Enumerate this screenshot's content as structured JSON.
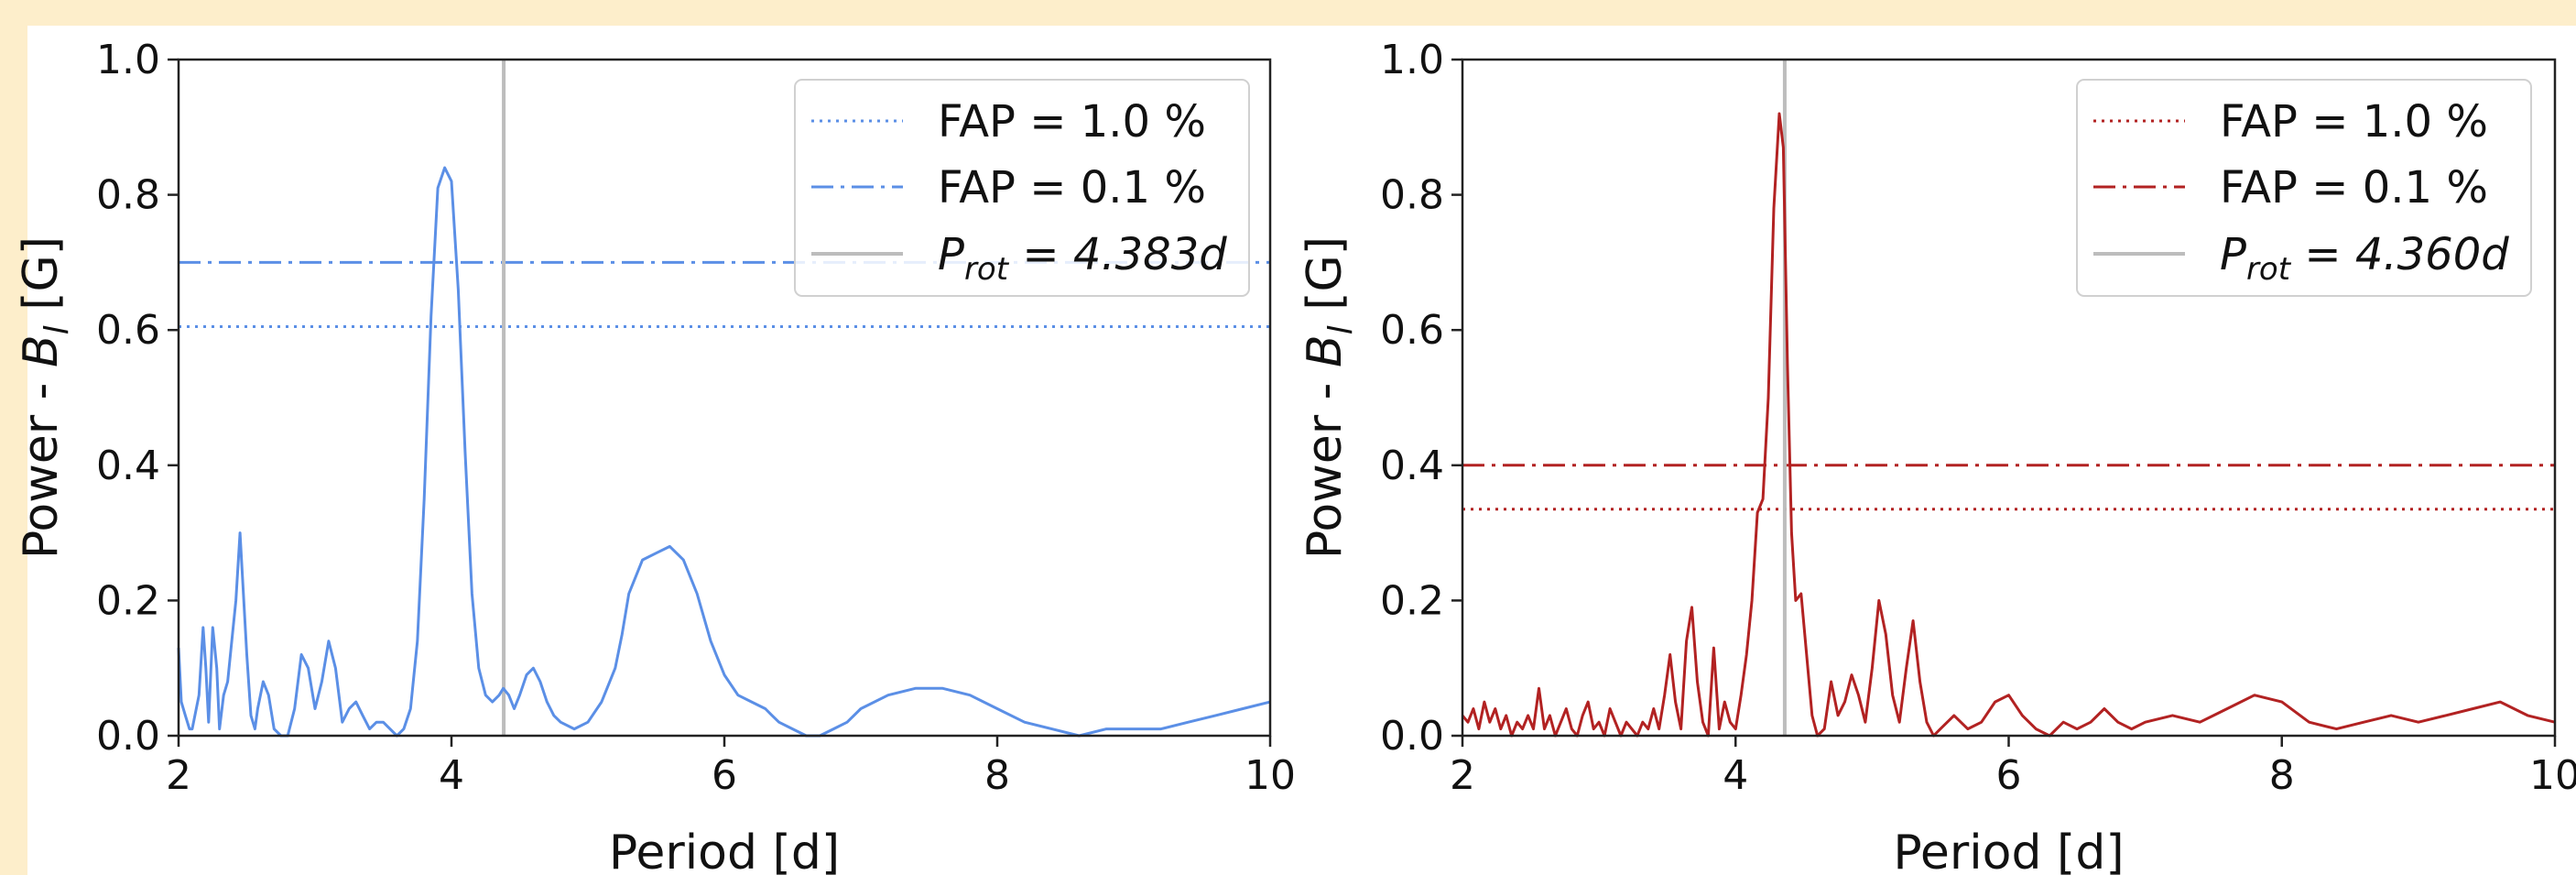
{
  "chart_data": [
    {
      "type": "line",
      "title": "",
      "xlabel": "Period [d]",
      "ylabel": "Power - B_l [G]",
      "ylabel_parts": {
        "pre": "Power - ",
        "sym": "B",
        "sub": "l",
        "post": " [G]"
      },
      "xlim": [
        2,
        10
      ],
      "ylim": [
        0,
        1.0
      ],
      "xticks": [
        "2",
        "4",
        "6",
        "8",
        "10"
      ],
      "yticks": [
        "0.0",
        "0.2",
        "0.4",
        "0.6",
        "0.8",
        "1.0"
      ],
      "color": "#5b8fe6",
      "legend_position": "top-right",
      "series": [
        {
          "x": [
            2.0,
            2.02,
            2.05,
            2.08,
            2.1,
            2.15,
            2.18,
            2.2,
            2.22,
            2.25,
            2.28,
            2.3,
            2.33,
            2.36,
            2.38,
            2.42,
            2.45,
            2.5,
            2.53,
            2.56,
            2.58,
            2.62,
            2.66,
            2.7,
            2.75,
            2.8,
            2.85,
            2.9,
            2.95,
            3.0,
            3.05,
            3.1,
            3.15,
            3.2,
            3.25,
            3.3,
            3.35,
            3.4,
            3.45,
            3.5,
            3.55,
            3.6,
            3.65,
            3.7,
            3.75,
            3.8,
            3.85,
            3.9,
            3.95,
            4.0,
            4.05,
            4.1,
            4.15,
            4.2,
            4.25,
            4.3,
            4.35,
            4.38,
            4.42,
            4.46,
            4.5,
            4.55,
            4.6,
            4.65,
            4.7,
            4.75,
            4.8,
            4.9,
            5.0,
            5.1,
            5.2,
            5.25,
            5.3,
            5.4,
            5.5,
            5.6,
            5.7,
            5.8,
            5.9,
            6.0,
            6.1,
            6.2,
            6.3,
            6.35,
            6.4,
            6.5,
            6.6,
            6.7,
            6.8,
            6.9,
            7.0,
            7.2,
            7.4,
            7.6,
            7.8,
            8.0,
            8.2,
            8.4,
            8.6,
            8.8,
            8.9,
            9.0,
            9.2,
            9.4,
            9.6,
            9.8,
            10.0
          ],
          "y": [
            0.13,
            0.05,
            0.03,
            0.01,
            0.01,
            0.06,
            0.16,
            0.1,
            0.02,
            0.16,
            0.1,
            0.01,
            0.06,
            0.08,
            0.12,
            0.2,
            0.3,
            0.12,
            0.03,
            0.01,
            0.04,
            0.08,
            0.06,
            0.01,
            0.0,
            0.0,
            0.04,
            0.12,
            0.1,
            0.04,
            0.08,
            0.14,
            0.1,
            0.02,
            0.04,
            0.05,
            0.03,
            0.01,
            0.02,
            0.02,
            0.01,
            0.0,
            0.01,
            0.04,
            0.14,
            0.35,
            0.62,
            0.81,
            0.84,
            0.82,
            0.66,
            0.42,
            0.21,
            0.1,
            0.06,
            0.05,
            0.06,
            0.07,
            0.06,
            0.04,
            0.06,
            0.09,
            0.1,
            0.08,
            0.05,
            0.03,
            0.02,
            0.01,
            0.02,
            0.05,
            0.1,
            0.15,
            0.21,
            0.26,
            0.27,
            0.28,
            0.26,
            0.21,
            0.14,
            0.09,
            0.06,
            0.05,
            0.04,
            0.03,
            0.02,
            0.01,
            0.0,
            0.0,
            0.01,
            0.02,
            0.04,
            0.06,
            0.07,
            0.07,
            0.06,
            0.04,
            0.02,
            0.01,
            0.0,
            0.01,
            0.01,
            0.01,
            0.01,
            0.02,
            0.03,
            0.04,
            0.05
          ]
        }
      ],
      "hlines": [
        {
          "label": "FAP = 1.0 %",
          "y": 0.605,
          "style": "dotted"
        },
        {
          "label": "FAP = 0.1 %",
          "y": 0.7,
          "style": "dashdot"
        }
      ],
      "vline": {
        "x": 4.383,
        "label_sym": "P",
        "label_sub": "rot",
        "label_text": " = 4.383d"
      }
    },
    {
      "type": "line",
      "title": "",
      "xlabel": "Period [d]",
      "ylabel": "Power - B_l [G]",
      "ylabel_parts": {
        "pre": "Power - ",
        "sym": "B",
        "sub": "l",
        "post": " [G]"
      },
      "xlim": [
        2,
        10
      ],
      "ylim": [
        0,
        1.0
      ],
      "xticks": [
        "2",
        "4",
        "6",
        "8",
        "10"
      ],
      "yticks": [
        "0.0",
        "0.2",
        "0.4",
        "0.6",
        "0.8",
        "1.0"
      ],
      "color": "#b22222",
      "legend_position": "top-right",
      "series": [
        {
          "x": [
            2.0,
            2.04,
            2.08,
            2.12,
            2.16,
            2.2,
            2.24,
            2.28,
            2.32,
            2.36,
            2.4,
            2.44,
            2.48,
            2.52,
            2.56,
            2.6,
            2.64,
            2.68,
            2.72,
            2.76,
            2.8,
            2.84,
            2.88,
            2.92,
            2.96,
            3.0,
            3.04,
            3.08,
            3.12,
            3.16,
            3.2,
            3.24,
            3.28,
            3.32,
            3.36,
            3.4,
            3.44,
            3.48,
            3.52,
            3.56,
            3.6,
            3.64,
            3.68,
            3.72,
            3.76,
            3.8,
            3.84,
            3.88,
            3.92,
            3.96,
            4.0,
            4.04,
            4.08,
            4.12,
            4.16,
            4.2,
            4.24,
            4.28,
            4.32,
            4.35,
            4.38,
            4.41,
            4.44,
            4.48,
            4.52,
            4.56,
            4.6,
            4.65,
            4.7,
            4.75,
            4.8,
            4.85,
            4.9,
            4.95,
            5.0,
            5.05,
            5.1,
            5.15,
            5.2,
            5.25,
            5.3,
            5.35,
            5.4,
            5.45,
            5.5,
            5.6,
            5.7,
            5.8,
            5.9,
            6.0,
            6.1,
            6.2,
            6.3,
            6.4,
            6.5,
            6.6,
            6.7,
            6.8,
            6.9,
            7.0,
            7.2,
            7.4,
            7.6,
            7.8,
            8.0,
            8.2,
            8.4,
            8.6,
            8.8,
            9.0,
            9.2,
            9.4,
            9.6,
            9.8,
            10.0
          ],
          "y": [
            0.03,
            0.02,
            0.04,
            0.01,
            0.05,
            0.02,
            0.04,
            0.01,
            0.03,
            0.0,
            0.02,
            0.01,
            0.03,
            0.01,
            0.07,
            0.01,
            0.03,
            0.0,
            0.02,
            0.04,
            0.01,
            0.0,
            0.03,
            0.05,
            0.01,
            0.02,
            0.0,
            0.04,
            0.02,
            0.0,
            0.02,
            0.01,
            0.0,
            0.02,
            0.01,
            0.04,
            0.01,
            0.06,
            0.12,
            0.05,
            0.01,
            0.14,
            0.19,
            0.08,
            0.02,
            0.0,
            0.13,
            0.01,
            0.05,
            0.02,
            0.01,
            0.06,
            0.12,
            0.2,
            0.33,
            0.35,
            0.5,
            0.78,
            0.92,
            0.87,
            0.55,
            0.3,
            0.2,
            0.21,
            0.12,
            0.03,
            0.0,
            0.01,
            0.08,
            0.03,
            0.05,
            0.09,
            0.06,
            0.02,
            0.1,
            0.2,
            0.15,
            0.06,
            0.02,
            0.1,
            0.17,
            0.08,
            0.02,
            0.0,
            0.01,
            0.03,
            0.01,
            0.02,
            0.05,
            0.06,
            0.03,
            0.01,
            0.0,
            0.02,
            0.01,
            0.02,
            0.04,
            0.02,
            0.01,
            0.02,
            0.03,
            0.02,
            0.04,
            0.06,
            0.05,
            0.02,
            0.01,
            0.02,
            0.03,
            0.02,
            0.03,
            0.04,
            0.05,
            0.03,
            0.02
          ]
        }
      ],
      "hlines": [
        {
          "label": "FAP = 1.0 %",
          "y": 0.335,
          "style": "dotted"
        },
        {
          "label": "FAP = 0.1 %",
          "y": 0.4,
          "style": "dashdot"
        }
      ],
      "vline": {
        "x": 4.36,
        "label_sym": "P",
        "label_sub": "rot",
        "label_text": " = 4.360d"
      }
    }
  ]
}
